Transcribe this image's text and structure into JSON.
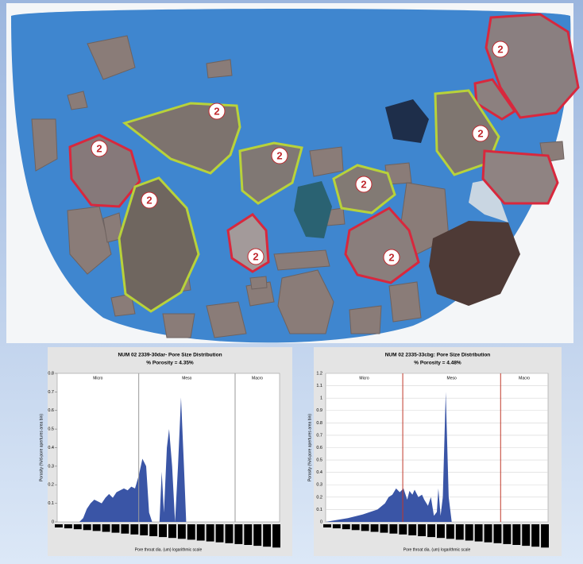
{
  "photo": {
    "labels": [
      "2",
      "2",
      "2",
      "2",
      "2",
      "2",
      "2",
      "2",
      "2"
    ]
  },
  "chart_data": [
    {
      "type": "area",
      "title": "NUM 02 2339-30dar- Pore Size Distribution",
      "subtitle": "% Porosity = 4.35%",
      "y_label": "Porosity (%/d-pore apertures area bin)",
      "x_label": "Pore throat dia. (um) logarithmic scale",
      "region_labels": [
        "Micro",
        "Meso",
        "Macro"
      ],
      "dividers": [
        11,
        24
      ],
      "divider_color": "#9a9a9a",
      "color": "#3a55a6",
      "x": [
        0,
        3,
        3.5,
        4,
        4.5,
        5,
        5.5,
        6,
        6.5,
        7,
        7.5,
        8,
        8.5,
        9,
        9.5,
        10,
        10.5,
        11,
        11.5,
        12,
        12.4,
        12.8,
        13.8,
        14.1,
        14.4,
        14.8,
        15.1,
        15.5,
        15.9,
        16.3,
        16.7,
        17.1,
        17.4,
        30
      ],
      "values": [
        0,
        0,
        0.02,
        0.07,
        0.1,
        0.12,
        0.11,
        0.1,
        0.13,
        0.15,
        0.13,
        0.16,
        0.17,
        0.18,
        0.17,
        0.19,
        0.18,
        0.25,
        0.34,
        0.3,
        0.05,
        0,
        0,
        0.27,
        0.05,
        0.4,
        0.5,
        0.3,
        0,
        0.3,
        0.67,
        0.3,
        0,
        0
      ],
      "xlim": [
        0,
        30
      ],
      "ylim": [
        0,
        0.8
      ],
      "yticks": [
        0,
        0.1,
        0.2,
        0.3,
        0.4,
        0.5,
        0.6,
        0.7,
        0.8
      ],
      "grid": false
    },
    {
      "type": "area",
      "title": "NUM 02 2335-33cbg: Pore Size Distribution",
      "subtitle": "% Porosity = 4.48%",
      "y_label": "Porosity (%/d-pore apertures area bin)",
      "x_label": "Pore throat dia. (um) logarithmic scale",
      "region_labels": [
        "Micro",
        "Meso",
        "Macro"
      ],
      "dividers": [
        10.4,
        23.6
      ],
      "divider_color": "#c0392b",
      "color": "#3a55a6",
      "x": [
        0,
        1,
        3,
        5,
        7,
        8,
        8.5,
        9,
        9.5,
        10,
        10.5,
        11,
        11.3,
        11.7,
        12,
        12.5,
        13,
        13.3,
        13.8,
        14.2,
        14.6,
        15,
        15.2,
        15.5,
        15.8,
        16.2,
        16.6,
        17,
        30
      ],
      "values": [
        0,
        0.01,
        0.03,
        0.06,
        0.1,
        0.15,
        0.2,
        0.22,
        0.27,
        0.24,
        0.27,
        0.18,
        0.25,
        0.22,
        0.26,
        0.2,
        0.22,
        0.18,
        0.13,
        0.2,
        0.05,
        0.08,
        0.27,
        0.05,
        0.2,
        1.05,
        0.2,
        0,
        0
      ],
      "xlim": [
        0,
        30
      ],
      "ylim": [
        0,
        1.2
      ],
      "yticks": [
        0,
        0.1,
        0.2,
        0.3,
        0.4,
        0.5,
        0.6,
        0.7,
        0.8,
        0.9,
        1,
        1.1,
        1.2
      ],
      "grid": true
    }
  ]
}
